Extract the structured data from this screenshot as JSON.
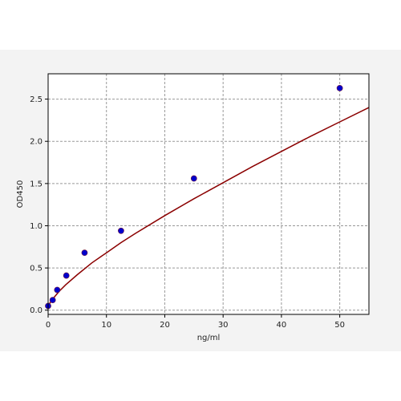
{
  "chart_data": {
    "type": "scatter",
    "title": "",
    "xlabel": "ng/ml",
    "ylabel": "OD450",
    "xlim": [
      0,
      55
    ],
    "ylim": [
      -0.05,
      2.8
    ],
    "xticks": [
      0,
      10,
      20,
      30,
      40,
      50
    ],
    "yticks": [
      0.0,
      0.5,
      1.0,
      1.5,
      2.0,
      2.5
    ],
    "xtick_labels": [
      "0",
      "10",
      "20",
      "30",
      "40",
      "50"
    ],
    "ytick_labels": [
      "0.0",
      "0.5",
      "1.0",
      "1.5",
      "2.0",
      "2.5"
    ],
    "grid": true,
    "series": [
      {
        "kind": "points",
        "color": "#0000cc",
        "x": [
          0,
          0.78,
          1.56,
          3.12,
          6.25,
          12.5,
          25,
          50
        ],
        "y": [
          0.05,
          0.12,
          0.24,
          0.41,
          0.68,
          0.94,
          1.56,
          2.63
        ]
      },
      {
        "kind": "fit-curve",
        "color": "#8b0000",
        "x": [
          0,
          0.5,
          1,
          2,
          3,
          5,
          7.5,
          10,
          12.5,
          15,
          20,
          25,
          30,
          35,
          40,
          45,
          50,
          55
        ],
        "y": [
          0.05,
          0.105,
          0.15,
          0.23,
          0.3,
          0.42,
          0.56,
          0.68,
          0.8,
          0.91,
          1.12,
          1.32,
          1.51,
          1.7,
          1.88,
          2.06,
          2.23,
          2.4
        ]
      }
    ]
  }
}
